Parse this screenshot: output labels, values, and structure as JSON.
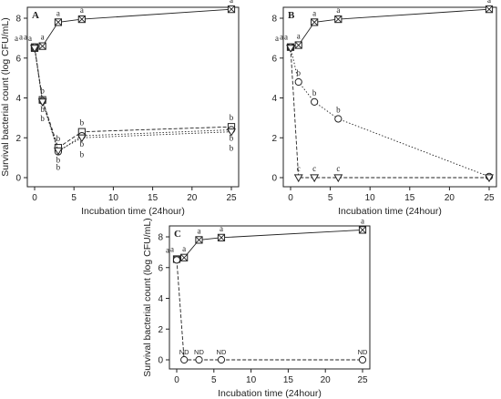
{
  "chart_data": [
    {
      "panel": "A",
      "type": "line",
      "xlabel": "Incubation time (24hour)",
      "ylabel": "Survival bacterial count (log CFU/mL)",
      "xlim": [
        0,
        25
      ],
      "ylim": [
        0,
        8
      ],
      "xticks": [
        "0",
        "5",
        "10",
        "15",
        "20",
        "25"
      ],
      "yticks": [
        "0",
        "2",
        "4",
        "6",
        "8"
      ],
      "x": [
        0,
        1,
        3,
        6,
        25
      ],
      "series": [
        {
          "values": [
            6.5,
            6.6,
            7.8,
            7.95,
            8.45
          ],
          "line": "solid",
          "marker": "square-x",
          "labels": [
            "a",
            "a",
            "a",
            "a",
            "a"
          ]
        },
        {
          "values": [
            6.55,
            3.9,
            1.5,
            2.3,
            2.55
          ],
          "line": "dashed",
          "marker": "square",
          "labels": [
            "a",
            "b",
            "b",
            "b",
            "b"
          ]
        },
        {
          "values": [
            6.55,
            3.85,
            1.3,
            2.1,
            2.4
          ],
          "line": "dotted",
          "marker": "circle",
          "labels": [
            "a",
            "b",
            "b",
            "b",
            "b"
          ]
        },
        {
          "values": [
            6.5,
            3.8,
            1.35,
            2.0,
            2.3
          ],
          "line": "dotted",
          "marker": "triangle-down",
          "labels": [
            "a",
            "b",
            "b",
            "b",
            "b"
          ]
        }
      ]
    },
    {
      "panel": "B",
      "type": "line",
      "xlabel": "Incubation time (24hour)",
      "ylabel": "",
      "xlim": [
        0,
        25
      ],
      "ylim": [
        0,
        8
      ],
      "xticks": [
        "0",
        "5",
        "10",
        "15",
        "20",
        "25"
      ],
      "yticks": [
        "0",
        "2",
        "4",
        "6",
        "8"
      ],
      "x": [
        0,
        1,
        3,
        6,
        25
      ],
      "series": [
        {
          "values": [
            6.55,
            6.65,
            7.8,
            7.95,
            8.45
          ],
          "line": "solid",
          "marker": "square-x",
          "labels": [
            "a",
            "a",
            "a",
            "a",
            "a"
          ]
        },
        {
          "values": [
            6.55,
            4.8,
            3.8,
            2.95,
            0.05
          ],
          "line": "dotted",
          "marker": "circle",
          "labels": [
            "a",
            "b",
            "b",
            "b",
            ""
          ]
        },
        {
          "values": [
            6.5,
            0.0,
            0.0,
            0.0,
            0.0
          ],
          "line": "dashed",
          "marker": "triangle-down",
          "labels": [
            "a",
            "c",
            "c",
            "c",
            ""
          ]
        }
      ]
    },
    {
      "panel": "C",
      "type": "line",
      "xlabel": "Incubation time (24hour)",
      "ylabel": "Survival bacterial count (log CFU/mL)",
      "xlim": [
        0,
        25
      ],
      "ylim": [
        0,
        8
      ],
      "xticks": [
        "0",
        "5",
        "10",
        "15",
        "20",
        "25"
      ],
      "yticks": [
        "0",
        "2",
        "4",
        "6",
        "8"
      ],
      "x": [
        0,
        1,
        3,
        6,
        25
      ],
      "series": [
        {
          "values": [
            6.55,
            6.65,
            7.8,
            7.95,
            8.45
          ],
          "line": "solid",
          "marker": "square-x",
          "labels": [
            "a",
            "a",
            "a",
            "a",
            "a"
          ]
        },
        {
          "values": [
            6.5,
            0.0,
            0.0,
            0.0,
            0.0
          ],
          "line": "dashed",
          "marker": "circle",
          "labels": [
            "a",
            "ND",
            "ND",
            "ND",
            "ND"
          ]
        }
      ]
    }
  ]
}
